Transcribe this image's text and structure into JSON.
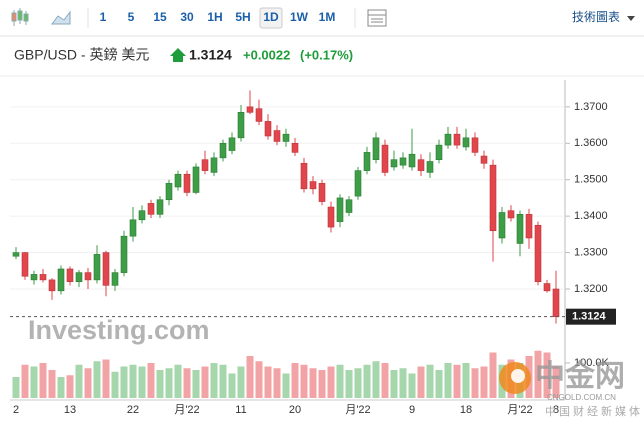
{
  "toolbar": {
    "intervals": [
      "1",
      "5",
      "15",
      "30",
      "1H",
      "5H",
      "1D",
      "1W",
      "1M"
    ],
    "active": 6,
    "menu": "技術圖表"
  },
  "header": {
    "symbol": "GBP/USD - 英鎊 美元",
    "change": "+0.0022",
    "change_pct": "(+0.17%)"
  },
  "watermarks": {
    "brand": "Investing.com",
    "logo": "中金网",
    "domain": "CNGOLD.COM.CN",
    "tagline": "中国财经新媒体"
  },
  "chart_data": {
    "type": "candlestick",
    "categories": [
      "2",
      null,
      null,
      null,
      null,
      null,
      "13",
      null,
      null,
      null,
      null,
      null,
      null,
      "22",
      null,
      null,
      null,
      null,
      null,
      "月'22",
      null,
      null,
      null,
      null,
      null,
      "11",
      null,
      null,
      null,
      null,
      null,
      "20",
      null,
      null,
      null,
      null,
      null,
      null,
      "月'22",
      null,
      null,
      null,
      null,
      null,
      "9",
      null,
      null,
      null,
      null,
      null,
      "18",
      null,
      null,
      null,
      null,
      null,
      "月'22",
      null,
      null,
      null,
      "8"
    ],
    "open": [
      1.329,
      1.33,
      1.3225,
      1.324,
      1.3225,
      1.3195,
      1.3255,
      1.322,
      1.3245,
      1.3225,
      1.33,
      1.321,
      1.3245,
      1.3345,
      1.339,
      1.3435,
      1.3405,
      1.3445,
      1.348,
      1.3515,
      1.3465,
      1.3555,
      1.352,
      1.356,
      1.358,
      1.3615,
      1.37,
      1.3695,
      1.366,
      1.3635,
      1.3605,
      1.36,
      1.3545,
      1.3495,
      1.349,
      1.3425,
      1.3385,
      1.341,
      1.3455,
      1.3525,
      1.3555,
      1.3595,
      1.3535,
      1.354,
      1.3535,
      1.3555,
      1.352,
      1.3555,
      1.3595,
      1.3625,
      1.359,
      1.3615,
      1.3565,
      1.354,
      1.334,
      1.3415,
      1.3325,
      1.3405,
      1.3375,
      1.3215,
      1.32
    ],
    "high": [
      1.3315,
      1.3302,
      1.325,
      1.3255,
      1.323,
      1.3265,
      1.3262,
      1.3252,
      1.3258,
      1.332,
      1.3305,
      1.3255,
      1.336,
      1.3425,
      1.343,
      1.3445,
      1.3455,
      1.35,
      1.3525,
      1.3525,
      1.3545,
      1.358,
      1.3575,
      1.361,
      1.363,
      1.3705,
      1.3745,
      1.372,
      1.368,
      1.365,
      1.364,
      1.3615,
      1.356,
      1.351,
      1.35,
      1.344,
      1.346,
      1.3455,
      1.3535,
      1.359,
      1.363,
      1.361,
      1.358,
      1.3575,
      1.364,
      1.357,
      1.3575,
      1.361,
      1.3645,
      1.3645,
      1.364,
      1.363,
      1.358,
      1.3555,
      1.3425,
      1.343,
      1.3415,
      1.342,
      1.3385,
      1.3225,
      1.325
    ],
    "low": [
      1.3282,
      1.3225,
      1.3212,
      1.3218,
      1.317,
      1.3185,
      1.321,
      1.3205,
      1.32,
      1.3215,
      1.318,
      1.3195,
      1.3235,
      1.333,
      1.338,
      1.3395,
      1.3395,
      1.343,
      1.347,
      1.3455,
      1.346,
      1.3515,
      1.351,
      1.355,
      1.357,
      1.3605,
      1.368,
      1.365,
      1.361,
      1.3595,
      1.359,
      1.3565,
      1.3465,
      1.346,
      1.343,
      1.3355,
      1.337,
      1.34,
      1.3445,
      1.3515,
      1.3545,
      1.351,
      1.3525,
      1.353,
      1.3525,
      1.351,
      1.3505,
      1.3545,
      1.3585,
      1.3585,
      1.358,
      1.3565,
      1.353,
      1.3275,
      1.3325,
      1.3385,
      1.329,
      1.331,
      1.321,
      1.319,
      1.3105
    ],
    "close": [
      1.33,
      1.3235,
      1.324,
      1.3225,
      1.3195,
      1.3255,
      1.322,
      1.3245,
      1.3225,
      1.3295,
      1.321,
      1.3245,
      1.3345,
      1.339,
      1.3415,
      1.3405,
      1.3445,
      1.349,
      1.3515,
      1.3465,
      1.3535,
      1.3525,
      1.356,
      1.36,
      1.3615,
      1.3685,
      1.3685,
      1.366,
      1.362,
      1.3605,
      1.3625,
      1.3575,
      1.3475,
      1.3475,
      1.344,
      1.337,
      1.345,
      1.3445,
      1.3525,
      1.3575,
      1.3615,
      1.352,
      1.3555,
      1.356,
      1.357,
      1.3525,
      1.355,
      1.3595,
      1.3625,
      1.3595,
      1.3615,
      1.3575,
      1.3545,
      1.336,
      1.341,
      1.3395,
      1.3405,
      1.334,
      1.322,
      1.3195,
      1.3124
    ],
    "volume": [
      60000,
      95000,
      90000,
      100000,
      80000,
      60000,
      65000,
      95000,
      85000,
      105000,
      110000,
      75000,
      90000,
      95000,
      90000,
      100000,
      80000,
      85000,
      95000,
      85000,
      80000,
      90000,
      100000,
      95000,
      70000,
      90000,
      120000,
      105000,
      90000,
      85000,
      70000,
      100000,
      95000,
      85000,
      80000,
      90000,
      95000,
      80000,
      85000,
      95000,
      105000,
      100000,
      80000,
      85000,
      70000,
      90000,
      95000,
      80000,
      100000,
      95000,
      100000,
      85000,
      90000,
      130000,
      95000,
      110000,
      100000,
      120000,
      135000,
      130000,
      90000
    ],
    "current_price": 1.3124,
    "ylim": [
      1.306,
      1.376
    ],
    "yticks": [
      {
        "value": 1.32,
        "label": "1.3200"
      },
      {
        "value": 1.33,
        "label": "1.3300"
      },
      {
        "value": 1.34,
        "label": "1.3400"
      },
      {
        "value": 1.35,
        "label": "1.3500"
      },
      {
        "value": 1.36,
        "label": "1.3600"
      },
      {
        "value": 1.37,
        "label": "1.3700"
      }
    ],
    "vlim": [
      0,
      150000
    ],
    "vticks": [
      {
        "value": 100000,
        "label": "100.0K"
      }
    ],
    "up_color": "#3e9e47",
    "down_color": "#e0464b",
    "volume_up_color": "#a6d6ab",
    "volume_down_color": "#f2a3a5"
  }
}
